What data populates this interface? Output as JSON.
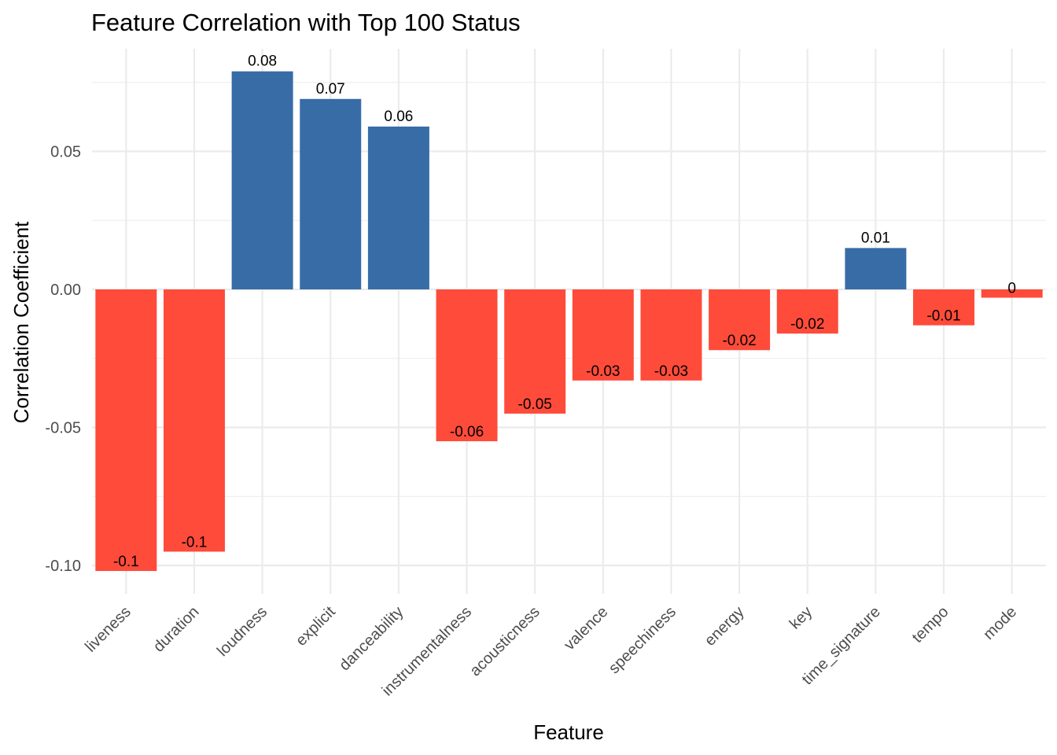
{
  "chart_data": {
    "type": "bar",
    "title": "Feature Correlation with Top 100 Status",
    "xlabel": "Feature",
    "ylabel": "Correlation Coefficient",
    "categories": [
      "liveness",
      "duration",
      "loudness",
      "explicit",
      "danceability",
      "instrumentalness",
      "acousticness",
      "valence",
      "speechiness",
      "energy",
      "key",
      "time_signature",
      "tempo",
      "mode"
    ],
    "values": [
      -0.102,
      -0.095,
      0.079,
      0.069,
      0.059,
      -0.055,
      -0.045,
      -0.033,
      -0.033,
      -0.022,
      -0.016,
      0.015,
      -0.013,
      -0.003
    ],
    "data_labels": [
      "-0.1",
      "-0.1",
      "0.08",
      "0.07",
      "0.06",
      "-0.06",
      "-0.05",
      "-0.03",
      "-0.03",
      "-0.02",
      "-0.02",
      "0.01",
      "-0.01",
      "0"
    ],
    "yticks": [
      -0.1,
      -0.05,
      0.0,
      0.05
    ],
    "ytick_labels": [
      "-0.10",
      "-0.05",
      "0.00",
      "0.05"
    ],
    "ylim": [
      -0.11,
      0.085
    ],
    "grid": true,
    "legend": "none",
    "colors": {
      "positive": "#386ca6",
      "negative": "#ff4b3a"
    }
  }
}
